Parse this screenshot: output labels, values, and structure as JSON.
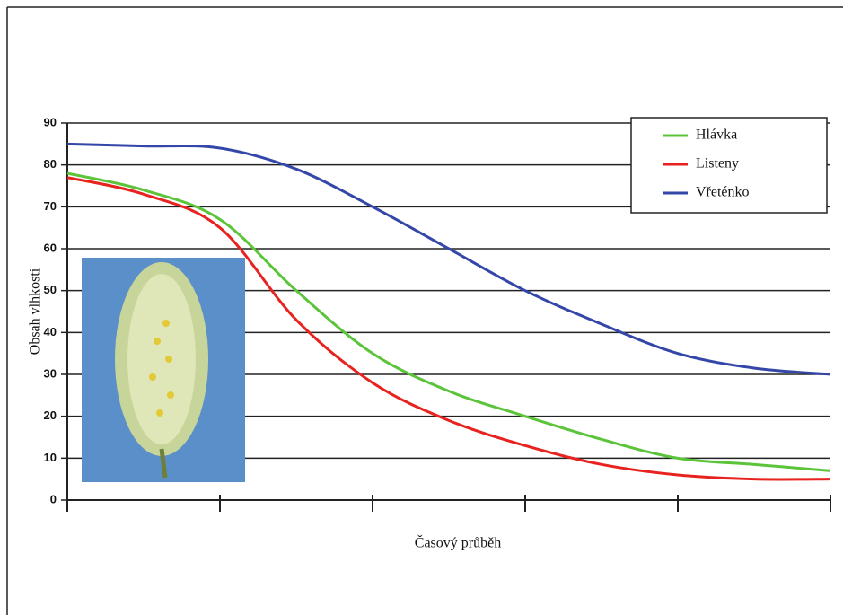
{
  "chart_data": {
    "type": "line",
    "y_label": "Obsah vlhkosti",
    "x_label": "Časový průběh",
    "x": [
      0,
      0.5,
      1,
      1.5,
      2,
      2.5,
      3,
      3.5,
      4,
      4.5,
      5
    ],
    "xlim": [
      0,
      5
    ],
    "xticks": [
      0,
      1,
      2,
      3,
      4,
      5
    ],
    "ylim": [
      0,
      90
    ],
    "yticks": [
      0,
      10,
      20,
      30,
      40,
      50,
      60,
      70,
      80,
      90
    ],
    "grid": true,
    "legend": "top-right",
    "series": [
      {
        "name": "Hlávka",
        "color": "#5cc43a",
        "values": [
          78,
          74,
          67,
          50,
          35,
          26,
          20,
          14.5,
          10,
          8.5,
          7
        ]
      },
      {
        "name": "Listeny",
        "color": "#e8231f",
        "values": [
          77,
          73,
          65,
          43,
          28,
          19,
          13,
          8.5,
          6,
          5,
          5
        ]
      },
      {
        "name": "Vřeténko",
        "color": "#3447a8",
        "values": [
          85,
          84.5,
          84,
          79,
          70,
          60,
          50,
          42,
          35,
          31.5,
          30
        ]
      }
    ]
  }
}
